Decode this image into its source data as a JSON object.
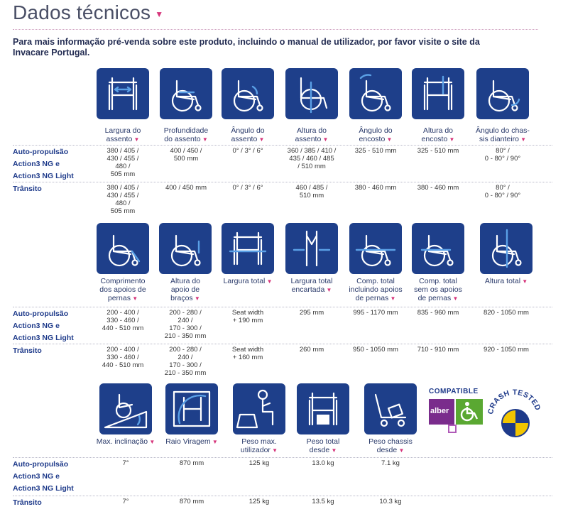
{
  "title": "Dados técnicos",
  "intro": "Para mais informação pré-venda sobre este produto, incluindo o manual de utilizador, por favor visite o site da Invacare Portugal.",
  "row_labels": {
    "self": "Auto-propulsão",
    "ng": "Action3 NG e",
    "ngl": "Action3 NG Light",
    "transit": "Trânsito"
  },
  "section1": {
    "captions": [
      [
        "Largura do",
        "assento"
      ],
      [
        "Profundidade",
        "do assento"
      ],
      [
        "Ângulo do",
        "assento"
      ],
      [
        "Altura do",
        "assento"
      ],
      [
        "Ângulo do",
        "encosto"
      ],
      [
        "Altura do",
        "encosto"
      ],
      [
        "Ângulo do chas-",
        "sis dianteiro"
      ]
    ],
    "icons": [
      "seat-width-icon",
      "seat-depth-icon",
      "seat-angle-icon",
      "seat-height-icon",
      "backrest-angle-icon",
      "backrest-height-icon",
      "frame-angle-icon"
    ],
    "self": [
      [
        "380 / 405 /",
        "430 / 455 /",
        "480 /",
        "505 mm"
      ],
      [
        "400 / 450 /",
        "500 mm"
      ],
      [
        "0° / 3° / 6°"
      ],
      [
        "360 / 385 / 410 /",
        "435 / 460 / 485",
        "/ 510 mm"
      ],
      [
        "325 - 510 mm"
      ],
      [
        "325 - 510 mm"
      ],
      [
        "80° /",
        "0 - 80° / 90°"
      ]
    ],
    "transit": [
      [
        "380 / 405 /",
        "430 / 455 /",
        "480 /",
        "505 mm"
      ],
      [
        "400 / 450 mm"
      ],
      [
        "0° / 3° / 6°"
      ],
      [
        "460 / 485 /",
        "510 mm"
      ],
      [
        "380 - 460 mm"
      ],
      [
        "380 - 460 mm"
      ],
      [
        "80° /",
        "0 - 80° / 90°"
      ]
    ]
  },
  "section2": {
    "captions": [
      [
        "Comprimento",
        "dos apoios de",
        "pernas"
      ],
      [
        "Altura do",
        "apoio de",
        "braços"
      ],
      [
        "Largura total"
      ],
      [
        "Largura total",
        "encartada"
      ],
      [
        "Comp. total",
        "incluindo apoios",
        "de pernas"
      ],
      [
        "Comp. total",
        "sem os apoios",
        "de pernas"
      ],
      [
        "Altura total"
      ]
    ],
    "icons": [
      "legrest-length-icon",
      "armrest-height-icon",
      "overall-width-icon",
      "folded-width-icon",
      "length-with-legrests-icon",
      "length-without-legrests-icon",
      "overall-height-icon"
    ],
    "self": [
      [
        "200 - 400 /",
        "330 - 460 /",
        "440 - 510 mm"
      ],
      [
        "200 - 280 /",
        "240 /",
        "170 - 300 /",
        "210 - 350 mm"
      ],
      [
        "Seat width",
        "+ 190 mm"
      ],
      [
        "295 mm"
      ],
      [
        "995 - 1170 mm"
      ],
      [
        "835 - 960 mm"
      ],
      [
        "820 - 1050 mm"
      ]
    ],
    "transit": [
      [
        "200 - 400 /",
        "330 - 460 /",
        "440 - 510 mm"
      ],
      [
        "200 - 280 /",
        "240 /",
        "170 - 300 /",
        "210 - 350 mm"
      ],
      [
        "Seat width",
        "+ 160 mm"
      ],
      [
        "260 mm"
      ],
      [
        "950 - 1050 mm"
      ],
      [
        "710 - 910 mm"
      ],
      [
        "920 - 1050 mm"
      ]
    ]
  },
  "section3": {
    "captions": [
      [
        "Max. inclinação"
      ],
      [
        "Raio Viragem"
      ],
      [
        "Peso max.",
        "utilizador"
      ],
      [
        "Peso total",
        "desde"
      ],
      [
        "Peso chassis",
        "desde"
      ]
    ],
    "icons": [
      "max-incline-icon",
      "turning-radius-icon",
      "max-user-weight-icon",
      "total-weight-icon",
      "chassis-weight-icon"
    ],
    "self": [
      [
        "7°"
      ],
      [
        "870 mm"
      ],
      [
        "125 kg"
      ],
      [
        "13.0 kg"
      ],
      [
        "7.1 kg"
      ]
    ],
    "transit": [
      [
        "7°"
      ],
      [
        "870 mm"
      ],
      [
        "125 kg"
      ],
      [
        "13.5 kg"
      ],
      [
        "10.3 kg"
      ]
    ]
  },
  "logos": {
    "compatible": "COMPATIBLE",
    "alber": "alber",
    "crash": "CRASH TESTED"
  },
  "colors": {
    "icon_bg": "#1e3f8a",
    "accent": "#d6347a",
    "label": "#1e3a8a"
  }
}
